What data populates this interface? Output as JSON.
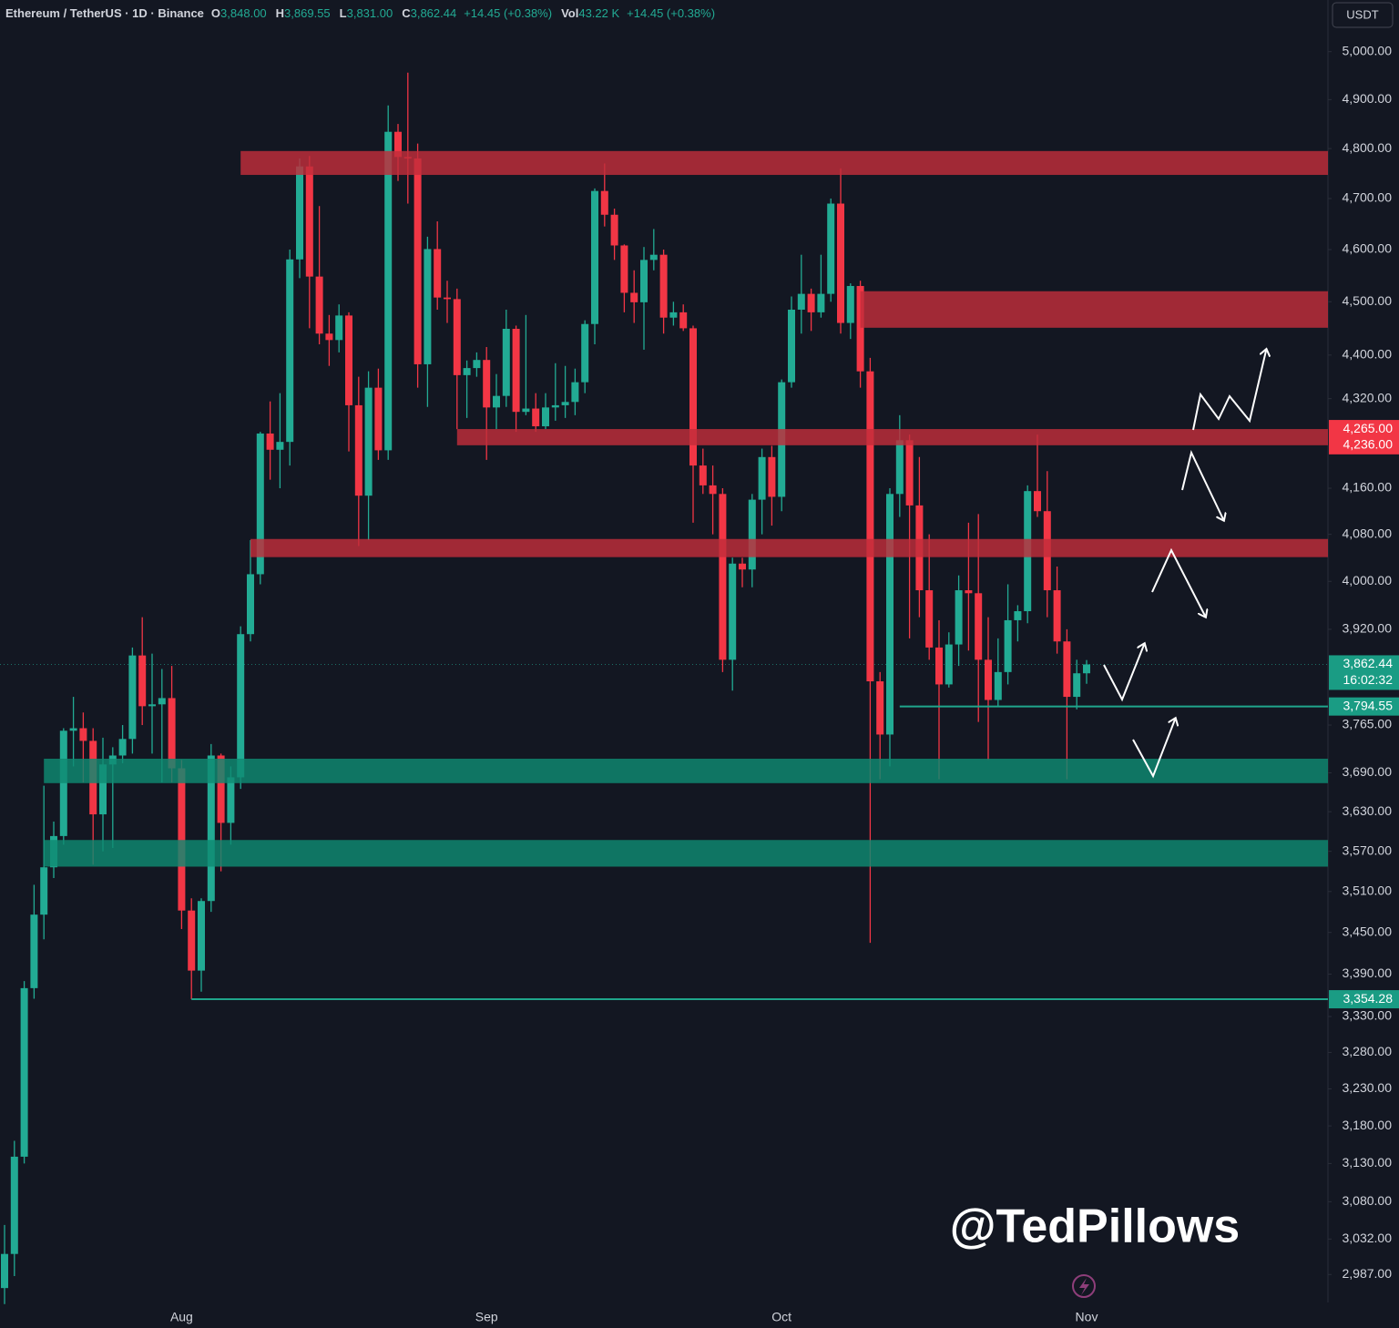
{
  "chart_data": {
    "type": "candlestick",
    "header": {
      "symbol": "Ethereum / TetherUS · 1D · Binance",
      "fields": [
        {
          "key": "O",
          "value": "3,848.00"
        },
        {
          "key": "H",
          "value": "3,869.55"
        },
        {
          "key": "L",
          "value": "3,831.00"
        },
        {
          "key": "C",
          "value": "3,862.44"
        },
        {
          "value": "+14.45 (+0.38%)"
        },
        {
          "key": "Vol",
          "value": "43.22 K"
        },
        {
          "value": "+14.45 (+0.38%)"
        }
      ]
    },
    "currency": "USDT",
    "watermark": "@TedPillows",
    "log_scale": true,
    "ylim": [
      2952,
      5110
    ],
    "yticks": [
      {
        "value": 5000,
        "label": "5,000.00"
      },
      {
        "value": 4900,
        "label": "4,900.00"
      },
      {
        "value": 4800,
        "label": "4,800.00"
      },
      {
        "value": 4700,
        "label": "4,700.00"
      },
      {
        "value": 4600,
        "label": "4,600.00"
      },
      {
        "value": 4500,
        "label": "4,500.00"
      },
      {
        "value": 4400,
        "label": "4,400.00"
      },
      {
        "value": 4320,
        "label": "4,320.00"
      },
      {
        "value": 4160,
        "label": "4,160.00"
      },
      {
        "value": 4080,
        "label": "4,080.00"
      },
      {
        "value": 4000,
        "label": "4,000.00"
      },
      {
        "value": 3920,
        "label": "3,920.00"
      },
      {
        "value": 3765,
        "label": "3,765.00"
      },
      {
        "value": 3690,
        "label": "3,690.00"
      },
      {
        "value": 3630,
        "label": "3,630.00"
      },
      {
        "value": 3570,
        "label": "3,570.00"
      },
      {
        "value": 3510,
        "label": "3,510.00"
      },
      {
        "value": 3450,
        "label": "3,450.00"
      },
      {
        "value": 3390,
        "label": "3,390.00"
      },
      {
        "value": 3330,
        "label": "3,330.00"
      },
      {
        "value": 3280,
        "label": "3,280.00"
      },
      {
        "value": 3230,
        "label": "3,230.00"
      },
      {
        "value": 3180,
        "label": "3,180.00"
      },
      {
        "value": 3130,
        "label": "3,130.00"
      },
      {
        "value": 3080,
        "label": "3,080.00"
      },
      {
        "value": 3032,
        "label": "3,032.00"
      },
      {
        "value": 2987,
        "label": "2,987.00"
      }
    ],
    "up_color": "#22ab94",
    "down_color": "#f23645",
    "categories": [
      null,
      null,
      null,
      null,
      null,
      null,
      null,
      null,
      null,
      null,
      null,
      null,
      null,
      null,
      null,
      null,
      null,
      null,
      "Aug",
      null,
      null,
      null,
      null,
      null,
      null,
      null,
      null,
      null,
      null,
      null,
      null,
      null,
      null,
      null,
      null,
      null,
      null,
      null,
      null,
      null,
      null,
      null,
      null,
      null,
      null,
      null,
      null,
      null,
      null,
      "Sep",
      null,
      null,
      null,
      null,
      null,
      null,
      null,
      null,
      null,
      null,
      null,
      null,
      null,
      null,
      null,
      null,
      null,
      null,
      null,
      null,
      null,
      null,
      null,
      null,
      null,
      null,
      null,
      null,
      null,
      "Oct",
      null,
      null,
      null,
      null,
      null,
      null,
      null,
      null,
      null,
      null,
      null,
      null,
      null,
      null,
      null,
      null,
      null,
      null,
      null,
      null,
      null,
      null,
      null,
      null,
      null,
      null,
      null,
      null,
      null,
      null,
      "Nov"
    ],
    "candles": {
      "open": [
        2970,
        3013,
        3139,
        3370,
        3476,
        3546,
        3593,
        3756,
        3760,
        3740,
        3626,
        3703,
        3717,
        3743,
        3877,
        3795,
        3798,
        3808,
        3697,
        3482,
        3395,
        3496,
        3717,
        3613,
        3683,
        3912,
        4012,
        4257,
        4228,
        4242,
        4581,
        4764,
        4548,
        4440,
        4428,
        4474,
        4308,
        4147,
        4340,
        4227,
        4834,
        4783,
        4780,
        4383,
        4601,
        4508,
        4505,
        4363,
        4376,
        4391,
        4304,
        4325,
        4449,
        4296,
        4302,
        4270,
        4304,
        4308,
        4314,
        4350,
        4458,
        4715,
        4668,
        4608,
        4517,
        4499,
        4580,
        4590,
        4470,
        4480,
        4450,
        4200,
        4165,
        4150,
        3870,
        4030,
        4020,
        4140,
        4215,
        4145,
        4350,
        4485,
        4515,
        4480,
        4515,
        4690,
        4460,
        4530,
        4370,
        3835,
        3750,
        4150,
        4245,
        4130,
        3985,
        3890,
        3830,
        3895,
        3985,
        3980,
        3870,
        3805,
        3850,
        3935,
        3950,
        4155,
        4120,
        3985,
        3900,
        3810,
        3848
      ],
      "high": [
        3050,
        3160,
        3380,
        3520,
        3670,
        3615,
        3760,
        3810,
        3785,
        3760,
        3745,
        3730,
        3765,
        3890,
        3940,
        3880,
        3855,
        3860,
        3710,
        3500,
        3500,
        3735,
        3720,
        3700,
        3925,
        4070,
        4260,
        4315,
        4330,
        4600,
        4780,
        4785,
        4685,
        4475,
        4495,
        4480,
        4360,
        4370,
        4375,
        4888,
        4850,
        4956,
        4810,
        4625,
        4655,
        4540,
        4525,
        4390,
        4405,
        4415,
        4365,
        4485,
        4455,
        4475,
        4330,
        4330,
        4385,
        4380,
        4375,
        4465,
        4720,
        4770,
        4680,
        4610,
        4560,
        4605,
        4640,
        4600,
        4500,
        4495,
        4455,
        4230,
        4200,
        4160,
        4040,
        4040,
        4150,
        4230,
        4235,
        4355,
        4510,
        4590,
        4525,
        4590,
        4700,
        4760,
        4535,
        4540,
        4395,
        3850,
        4160,
        4290,
        4255,
        4215,
        4080,
        3935,
        3915,
        4010,
        4100,
        4115,
        3940,
        3905,
        3995,
        3960,
        4165,
        4255,
        4190,
        4025,
        3920,
        3870,
        3869.55
      ],
      "low": [
        2950,
        2985,
        3130,
        3355,
        3440,
        3530,
        3580,
        3700,
        3675,
        3550,
        3570,
        3575,
        3705,
        3720,
        3765,
        3720,
        3675,
        3675,
        3455,
        3354.28,
        3365,
        3480,
        3540,
        3580,
        3665,
        3900,
        3995,
        4175,
        4160,
        4200,
        4545,
        4450,
        4420,
        4380,
        4405,
        4225,
        4060,
        4070,
        4210,
        4210,
        4735,
        4690,
        4340,
        4305,
        4485,
        4460,
        4265,
        4285,
        4360,
        4210,
        4265,
        4305,
        4260,
        4290,
        4260,
        4265,
        4280,
        4285,
        4290,
        4330,
        4420,
        4645,
        4580,
        4480,
        4460,
        4410,
        4560,
        4440,
        4455,
        4445,
        4100,
        4150,
        4080,
        3850,
        3820,
        3990,
        3990,
        4080,
        4095,
        4120,
        4340,
        4440,
        4445,
        4470,
        4500,
        4440,
        4430,
        4340,
        3435,
        3680,
        3700,
        4110,
        3905,
        3940,
        3870,
        3680,
        3825,
        3860,
        3885,
        3770,
        3710,
        3795,
        3830,
        3900,
        3930,
        4110,
        3940,
        3880,
        3680,
        3790,
        3831
      ],
      "close": [
        3013,
        3139,
        3370,
        3476,
        3546,
        3593,
        3756,
        3760,
        3740,
        3626,
        3703,
        3717,
        3743,
        3877,
        3795,
        3798,
        3808,
        3697,
        3482,
        3395,
        3496,
        3717,
        3613,
        3683,
        3912,
        4012,
        4257,
        4228,
        4242,
        4581,
        4764,
        4548,
        4440,
        4428,
        4474,
        4308,
        4147,
        4340,
        4227,
        4834,
        4783,
        4780,
        4383,
        4601,
        4508,
        4505,
        4363,
        4376,
        4391,
        4304,
        4325,
        4449,
        4296,
        4302,
        4270,
        4304,
        4308,
        4314,
        4350,
        4458,
        4715,
        4668,
        4608,
        4517,
        4499,
        4580,
        4590,
        4470,
        4480,
        4450,
        4200,
        4165,
        4150,
        3870,
        4030,
        4020,
        4140,
        4215,
        4145,
        4350,
        4485,
        4515,
        4480,
        4515,
        4690,
        4460,
        4530,
        4370,
        3835,
        3750,
        4150,
        4245,
        4130,
        3985,
        3890,
        3830,
        3895,
        3985,
        3980,
        3870,
        3805,
        3850,
        3935,
        3950,
        4155,
        4120,
        3985,
        3900,
        3810,
        3848,
        3862.44
      ]
    },
    "zones": [
      {
        "start": 24,
        "low": 4747,
        "high": 4795,
        "color": "#c12d3b"
      },
      {
        "start": 87,
        "low": 4451,
        "high": 4520,
        "color": "#c12d3b"
      },
      {
        "start": 46,
        "low": 4236,
        "high": 4265,
        "color": "#c12d3b"
      },
      {
        "start": 25,
        "low": 4041,
        "high": 4072,
        "color": "#c12d3b"
      },
      {
        "start": 4,
        "low": 3674,
        "high": 3712,
        "color": "#0f8a72"
      },
      {
        "start": 4,
        "low": 3547,
        "high": 3587,
        "color": "#0f8a72"
      }
    ],
    "lines": [
      {
        "start": 91,
        "value": 3794.55,
        "color": "#1fa58b"
      },
      {
        "start": 19,
        "value": 3354.28,
        "color": "#1fa58b"
      }
    ],
    "price_labels": [
      {
        "value": 4265,
        "label": "4,265.00",
        "color": "#f23645"
      },
      {
        "value": 4236,
        "label": "4,236.00",
        "color": "#f23645"
      },
      {
        "value": 3862.44,
        "label": "3,862.44",
        "sublabel": "16:02:32",
        "color": "#1a9c84"
      },
      {
        "value": 3794.55,
        "label": "3,794.55",
        "color": "#1a9c84"
      },
      {
        "value": 3354.28,
        "label": "3,354.28",
        "color": "#1a9c84"
      }
    ]
  }
}
